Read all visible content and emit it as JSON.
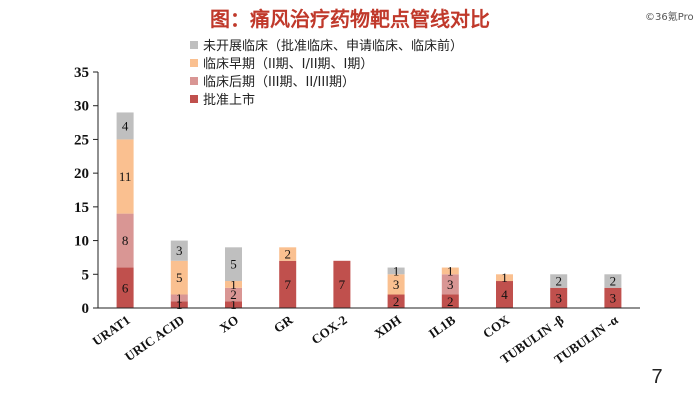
{
  "title": "图：痛风治疗药物靶点管线对比",
  "watermark": "©36氪Pro",
  "page_number": "7",
  "chart_data": {
    "type": "bar",
    "stacked": true,
    "categories": [
      "URAT1",
      "URIC ACID",
      "XO",
      "GR",
      "COX-2",
      "XDH",
      "IL1B",
      "COX",
      "TUBULIN -β",
      "TUBULIN -α"
    ],
    "series": [
      {
        "name": "批准上市",
        "color": "#c0504d",
        "values": [
          6,
          1,
          1,
          7,
          7,
          2,
          2,
          4,
          3,
          3
        ]
      },
      {
        "name": "临床后期（III期、II/III期）",
        "color": "#d99694",
        "values": [
          8,
          1,
          2,
          0,
          0,
          0,
          3,
          0,
          0,
          0
        ]
      },
      {
        "name": "临床早期（II期、I/II期、I期）",
        "color": "#fac090",
        "values": [
          11,
          5,
          1,
          2,
          0,
          3,
          1,
          1,
          0,
          0
        ]
      },
      {
        "name": "未开展临床（批准临床、申请临床、临床前）",
        "color": "#bfbfbf",
        "values": [
          4,
          3,
          5,
          0,
          0,
          1,
          0,
          0,
          2,
          2
        ]
      }
    ],
    "ylim": [
      0,
      35
    ],
    "yticks": [
      0,
      5,
      10,
      15,
      20,
      25,
      30,
      35
    ],
    "legend_position": "top-left",
    "grid": false
  }
}
